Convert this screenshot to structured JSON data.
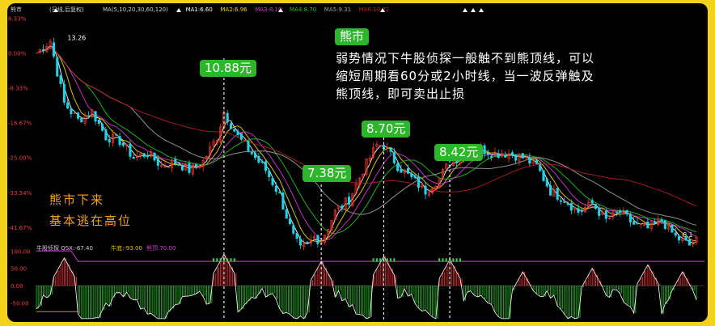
{
  "colors": {
    "up": "#e8342a",
    "down": "#22d3e6",
    "ma5": "#ffffff",
    "ma10": "#f2d21a",
    "ma20": "#d33ad3",
    "ma30": "#20c020",
    "ma60": "#a0a0a0",
    "ma120": "#b02020",
    "bg": "#000000",
    "frame": "#f2d21a",
    "grid_label": "#e84040",
    "osc_line": "#c040c0",
    "osc_up": "#e03030",
    "osc_down": "#30b030",
    "dash": "#ffffff",
    "bubble": "#2db52b",
    "text_orange": "#f0a020"
  },
  "header": {
    "title": "熊市",
    "period": "(日线,后复权)",
    "ma_labels": [
      "MA(5,10,20,30,60,120)",
      "MA1:6.60",
      "MA2:6.96",
      "MA3:8.10",
      "MA4:8.70",
      "MA5:9.31",
      "MA6:10.22"
    ]
  },
  "chart_data": {
    "type": "candlestick",
    "y_axis_ticks": [
      "8.33%",
      "0.00%",
      "-8.33%",
      "-16.67%",
      "-25.00%",
      "-33.34%",
      "-41.67%"
    ],
    "ylim": [
      -45,
      10
    ],
    "high_label": "13.26",
    "low_label": "6.1",
    "price_annotations": [
      {
        "label": "10.88元",
        "x": 54
      },
      {
        "label": "7.38元",
        "x": 82
      },
      {
        "label": "8.70元",
        "x": 100
      },
      {
        "label": "8.42元",
        "x": 119
      }
    ],
    "annotations": {
      "left_text": [
        "熊市下来",
        "基本逃在高位"
      ],
      "note_title": "熊市",
      "note_lines": [
        "弱势情况下牛股侦探一般触不到熊顶线，可以",
        "缩短周期看60分或2小时线，当一波反弹触及",
        "熊顶线，即可卖出止损"
      ]
    },
    "candles_approx": {
      "x": [
        0,
        4,
        8,
        12,
        16,
        20,
        24,
        28,
        32,
        36,
        40,
        44,
        48,
        52,
        54,
        58,
        62,
        66,
        70,
        74,
        76,
        78,
        80,
        82,
        86,
        90,
        94,
        98,
        100,
        104,
        108,
        112,
        116,
        119,
        124,
        128,
        132,
        136,
        140,
        144,
        148,
        152,
        156,
        160,
        164,
        168,
        172,
        176,
        180,
        184,
        188,
        190
      ],
      "close": [
        0,
        3,
        -12,
        -16,
        -14,
        -20,
        -21,
        -25,
        -24,
        -27,
        -26,
        -28,
        -26,
        -20,
        -14,
        -20,
        -24,
        -28,
        -34,
        -44,
        -47,
        -46,
        -44,
        -45,
        -38,
        -35,
        -28,
        -22,
        -22,
        -27,
        -30,
        -33,
        -30,
        -26,
        -24,
        -23,
        -24,
        -24,
        -25,
        -27,
        -33,
        -35,
        -38,
        -36,
        -40,
        -38,
        -41,
        -42,
        -40,
        -44,
        -46,
        -45
      ]
    },
    "oscillator": {
      "title": "牛股侦探",
      "qsx_label": "QSX:-67.40",
      "bull_label": "牛底:-93.00",
      "bear_label": "熊顶:70.00",
      "y_ticks": [
        "100.00",
        "50.00",
        "0.00",
        "-50.00"
      ],
      "bear_top": 70,
      "bull_bottom": -93
    }
  }
}
